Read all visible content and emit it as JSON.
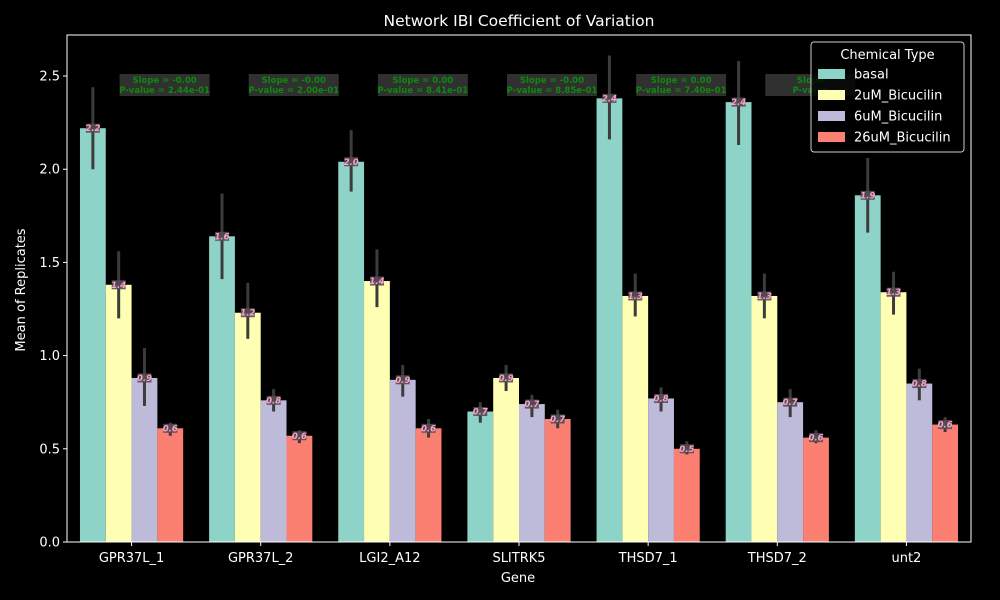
{
  "chart_data": {
    "type": "bar",
    "title": "Network IBI Coefficient of Variation",
    "xlabel": "Gene",
    "ylabel": "Mean of Replicates",
    "ylim": [
      0,
      2.72
    ],
    "yticks": [
      "0.0",
      "0.5",
      "1.0",
      "1.5",
      "2.0",
      "2.5"
    ],
    "grid": false,
    "categories": [
      "GPR37L_1",
      "GPR37L_2",
      "LGI2_A12",
      "SLITRK5",
      "THSD7_1",
      "THSD7_2",
      "unt2"
    ],
    "legend": {
      "title": "Chemical Type",
      "position": "top-right"
    },
    "series": [
      {
        "name": "basal",
        "color": "#8dd3c7",
        "values": [
          2.22,
          1.64,
          2.04,
          0.7,
          2.38,
          2.36,
          1.86
        ],
        "ci_low": [
          2.0,
          1.41,
          1.88,
          0.64,
          2.16,
          2.13,
          1.66
        ],
        "ci_high": [
          2.44,
          1.87,
          2.21,
          0.75,
          2.61,
          2.58,
          2.06
        ],
        "labels": [
          "2.2",
          "1.6",
          "2.0",
          "0.7",
          "2.4",
          "2.4",
          "1.9"
        ]
      },
      {
        "name": "2uM_Bicucilin",
        "color": "#ffffb3",
        "values": [
          1.38,
          1.23,
          1.4,
          0.88,
          1.32,
          1.32,
          1.34
        ],
        "ci_low": [
          1.2,
          1.09,
          1.26,
          0.81,
          1.21,
          1.2,
          1.22
        ],
        "ci_high": [
          1.56,
          1.39,
          1.57,
          0.95,
          1.44,
          1.44,
          1.45
        ],
        "labels": [
          "1.4",
          "1.2",
          "1.4",
          "0.9",
          "1.3",
          "1.3",
          "1.3"
        ]
      },
      {
        "name": "6uM_Bicucilin",
        "color": "#bebada",
        "values": [
          0.88,
          0.76,
          0.87,
          0.74,
          0.77,
          0.75,
          0.85
        ],
        "ci_low": [
          0.73,
          0.7,
          0.78,
          0.67,
          0.7,
          0.67,
          0.76
        ],
        "ci_high": [
          1.04,
          0.82,
          0.95,
          0.79,
          0.83,
          0.82,
          0.93
        ],
        "labels": [
          "0.9",
          "0.8",
          "0.9",
          "0.7",
          "0.8",
          "0.7",
          "0.8"
        ]
      },
      {
        "name": "26uM_Bicucilin",
        "color": "#fb8072",
        "values": [
          0.61,
          0.57,
          0.61,
          0.66,
          0.5,
          0.56,
          0.63
        ],
        "ci_low": [
          0.57,
          0.53,
          0.56,
          0.61,
          0.47,
          0.53,
          0.59
        ],
        "ci_high": [
          0.64,
          0.6,
          0.66,
          0.71,
          0.54,
          0.6,
          0.67
        ],
        "labels": [
          "0.6",
          "0.6",
          "0.6",
          "0.7",
          "0.5",
          "0.6",
          "0.6"
        ]
      }
    ],
    "annotations": [
      {
        "slope": "Slope = -0.00",
        "pvalue": "P-value = 2.44e-01"
      },
      {
        "slope": "Slope = -0.00",
        "pvalue": "P-value = 2.00e-01"
      },
      {
        "slope": "Slope = 0.00",
        "pvalue": "P-value = 8.41e-01"
      },
      {
        "slope": "Slope = -0.00",
        "pvalue": "P-value = 8.85e-01"
      },
      {
        "slope": "Slope = 0.00",
        "pvalue": "P-value = 7.40e-01"
      },
      {
        "slope": "Slope",
        "pvalue": "P-value"
      },
      {
        "slope": "",
        "pvalue": ""
      }
    ]
  }
}
